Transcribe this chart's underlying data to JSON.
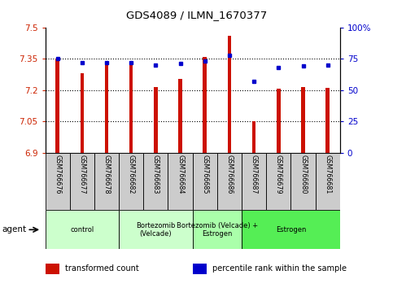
{
  "title": "GDS4089 / ILMN_1670377",
  "samples": [
    "GSM766676",
    "GSM766677",
    "GSM766678",
    "GSM766682",
    "GSM766683",
    "GSM766684",
    "GSM766685",
    "GSM766686",
    "GSM766687",
    "GSM766679",
    "GSM766680",
    "GSM766681"
  ],
  "red_values": [
    7.35,
    7.28,
    7.33,
    7.33,
    7.215,
    7.255,
    7.36,
    7.46,
    7.05,
    7.205,
    7.215,
    7.21
  ],
  "blue_values": [
    75,
    72,
    72,
    72,
    70,
    71,
    73,
    78,
    57,
    68,
    69,
    70
  ],
  "ylim_left": [
    6.9,
    7.5
  ],
  "ylim_right": [
    0,
    100
  ],
  "yticks_left": [
    6.9,
    7.05,
    7.2,
    7.35,
    7.5
  ],
  "yticks_right": [
    0,
    25,
    50,
    75,
    100
  ],
  "ytick_labels_left": [
    "6.9",
    "7.05",
    "7.2",
    "7.35",
    "7.5"
  ],
  "ytick_labels_right": [
    "0",
    "25",
    "50",
    "75",
    "100%"
  ],
  "hlines": [
    7.05,
    7.2,
    7.35
  ],
  "groups": [
    {
      "label": "control",
      "start": 0,
      "end": 3,
      "color": "#ccffcc"
    },
    {
      "label": "Bortezomib\n(Velcade)",
      "start": 3,
      "end": 6,
      "color": "#ccffcc"
    },
    {
      "label": "Bortezomib (Velcade) +\nEstrogen",
      "start": 6,
      "end": 8,
      "color": "#aaffaa"
    },
    {
      "label": "Estrogen",
      "start": 8,
      "end": 12,
      "color": "#55ee55"
    }
  ],
  "bar_color": "#cc1100",
  "dot_color": "#0000cc",
  "legend_items": [
    {
      "color": "#cc1100",
      "label": "transformed count"
    },
    {
      "color": "#0000cc",
      "label": "percentile rank within the sample"
    }
  ],
  "agent_label": "agent",
  "background_color": "#ffffff",
  "plot_bg_color": "#ffffff",
  "tick_label_color_left": "#cc2200",
  "tick_label_color_right": "#0000cc",
  "sample_box_color": "#cccccc",
  "title_fontsize": 9.5
}
